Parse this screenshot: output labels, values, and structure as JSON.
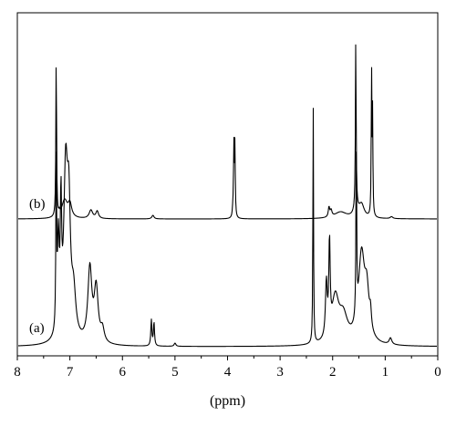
{
  "chart_data": {
    "type": "line",
    "title": "",
    "xlabel": "(ppm)",
    "ylabel": "",
    "xlim": [
      8,
      0
    ],
    "x_reversed": true,
    "x_ticks": [
      "8",
      "7",
      "6",
      "5",
      "4",
      "3",
      "2",
      "1",
      "0"
    ],
    "grid": false,
    "legend": "none",
    "series": [
      {
        "name": "(b)",
        "label_text": "(b)",
        "baseline": 0,
        "peaks": [
          {
            "x": 7.26,
            "h": 1.0,
            "w": 0.008
          },
          {
            "x": 7.2,
            "h": 0.02,
            "w": 0.01
          },
          {
            "x": 7.1,
            "h": 0.11,
            "w": 0.065
          },
          {
            "x": 7.0,
            "h": 0.08,
            "w": 0.04
          },
          {
            "x": 6.6,
            "h": 0.052,
            "w": 0.04
          },
          {
            "x": 6.48,
            "h": 0.045,
            "w": 0.03
          },
          {
            "x": 5.42,
            "h": 0.022,
            "w": 0.025
          },
          {
            "x": 3.88,
            "h": 0.44,
            "w": 0.008
          },
          {
            "x": 3.86,
            "h": 0.44,
            "w": 0.008
          },
          {
            "x": 3.9,
            "h": 0.04,
            "w": 0.01
          },
          {
            "x": 2.07,
            "h": 0.06,
            "w": 0.015
          },
          {
            "x": 2.03,
            "h": 0.04,
            "w": 0.02
          },
          {
            "x": 1.85,
            "h": 0.04,
            "w": 0.14
          },
          {
            "x": 1.56,
            "h": 1.05,
            "w": 0.008
          },
          {
            "x": 1.55,
            "h": 0.05,
            "w": 0.05
          },
          {
            "x": 1.45,
            "h": 0.08,
            "w": 0.06
          },
          {
            "x": 1.26,
            "h": 0.9,
            "w": 0.007
          },
          {
            "x": 1.24,
            "h": 0.62,
            "w": 0.007
          },
          {
            "x": 0.88,
            "h": 0.012,
            "w": 0.03
          }
        ]
      },
      {
        "name": "(a)",
        "label_text": "(a)",
        "baseline": 0,
        "peaks": [
          {
            "x": 7.26,
            "h": 0.82,
            "w": 0.008
          },
          {
            "x": 7.22,
            "h": 0.42,
            "w": 0.02
          },
          {
            "x": 7.17,
            "h": 0.55,
            "w": 0.015
          },
          {
            "x": 7.08,
            "h": 0.76,
            "w": 0.045
          },
          {
            "x": 7.02,
            "h": 0.5,
            "w": 0.035
          },
          {
            "x": 6.93,
            "h": 0.2,
            "w": 0.05
          },
          {
            "x": 6.62,
            "h": 0.34,
            "w": 0.045
          },
          {
            "x": 6.5,
            "h": 0.25,
            "w": 0.045
          },
          {
            "x": 6.38,
            "h": 0.06,
            "w": 0.04
          },
          {
            "x": 5.45,
            "h": 0.12,
            "w": 0.012
          },
          {
            "x": 5.4,
            "h": 0.11,
            "w": 0.012
          },
          {
            "x": 5.0,
            "h": 0.015,
            "w": 0.02
          },
          {
            "x": 2.37,
            "h": 1.12,
            "w": 0.007
          },
          {
            "x": 2.12,
            "h": 0.25,
            "w": 0.02
          },
          {
            "x": 2.06,
            "h": 0.42,
            "w": 0.015
          },
          {
            "x": 1.95,
            "h": 0.2,
            "w": 0.08
          },
          {
            "x": 1.8,
            "h": 0.12,
            "w": 0.1
          },
          {
            "x": 1.55,
            "h": 0.85,
            "w": 0.008
          },
          {
            "x": 1.45,
            "h": 0.4,
            "w": 0.07
          },
          {
            "x": 1.35,
            "h": 0.2,
            "w": 0.05
          },
          {
            "x": 1.28,
            "h": 0.08,
            "w": 0.02
          },
          {
            "x": 0.9,
            "h": 0.03,
            "w": 0.03
          }
        ]
      }
    ]
  }
}
